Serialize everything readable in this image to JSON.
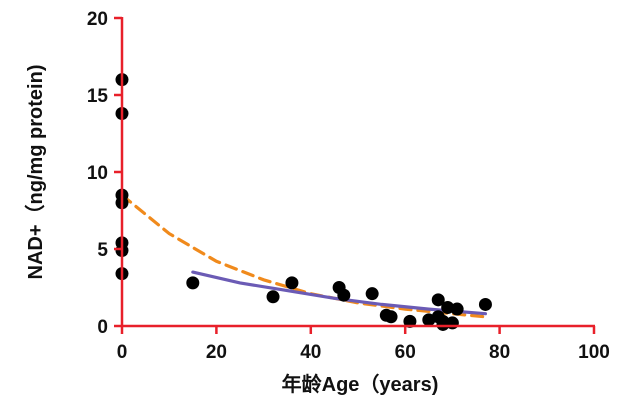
{
  "chart_data": {
    "type": "scatter",
    "title": "",
    "xlabel": "年龄Age（years)",
    "ylabel": "NAD+（ng/mg protein)",
    "xlim": [
      0,
      100
    ],
    "ylim": [
      0,
      20
    ],
    "x_ticks": [
      0,
      20,
      40,
      60,
      80,
      100
    ],
    "y_ticks": [
      0,
      5,
      10,
      15,
      20
    ],
    "grid": false,
    "legend": "none",
    "axis_color": "#e8202a",
    "point_color": "#000000",
    "series": [
      {
        "type": "scatter",
        "points": [
          [
            0,
            16.0
          ],
          [
            0,
            13.8
          ],
          [
            0,
            8.5
          ],
          [
            0,
            8.0
          ],
          [
            0,
            5.4
          ],
          [
            0,
            4.9
          ],
          [
            0,
            3.4
          ],
          [
            15,
            2.8
          ],
          [
            32,
            1.9
          ],
          [
            36,
            2.8
          ],
          [
            46,
            2.5
          ],
          [
            47,
            2.0
          ],
          [
            53,
            2.1
          ],
          [
            56,
            0.7
          ],
          [
            57,
            0.6
          ],
          [
            61,
            0.3
          ],
          [
            65,
            0.4
          ],
          [
            67,
            1.7
          ],
          [
            67,
            0.6
          ],
          [
            68,
            0.1
          ],
          [
            68,
            0.3
          ],
          [
            69,
            1.2
          ],
          [
            70,
            0.2
          ],
          [
            71,
            1.1
          ],
          [
            77,
            1.4
          ]
        ]
      },
      {
        "type": "line",
        "style": "dashed",
        "color": "#f08a1c",
        "points": [
          [
            0,
            8.5
          ],
          [
            10,
            6.0
          ],
          [
            20,
            4.2
          ],
          [
            30,
            3.0
          ],
          [
            40,
            2.1
          ],
          [
            50,
            1.5
          ],
          [
            60,
            1.1
          ],
          [
            70,
            0.8
          ],
          [
            77,
            0.6
          ]
        ]
      },
      {
        "type": "line",
        "style": "solid",
        "color": "#6b5bb5",
        "points": [
          [
            15,
            3.5
          ],
          [
            25,
            2.8
          ],
          [
            35,
            2.3
          ],
          [
            45,
            1.8
          ],
          [
            55,
            1.4
          ],
          [
            65,
            1.1
          ],
          [
            77,
            0.8
          ]
        ]
      }
    ]
  }
}
